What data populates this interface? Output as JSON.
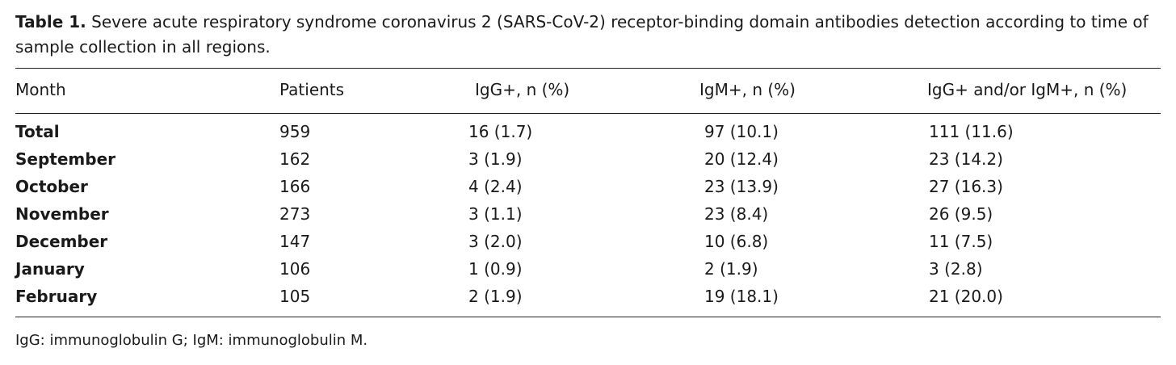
{
  "caption": {
    "label": "Table 1.",
    "text": "Severe acute respiratory syndrome coronavirus 2 (SARS-CoV-2) receptor-binding domain antibodies detection according to time of sample collection in all regions."
  },
  "table": {
    "headers": [
      "Month",
      "Patients",
      "IgG+, n (%)",
      "IgM+, n (%)",
      "IgG+ and/or IgM+, n (%)"
    ],
    "rows": [
      {
        "month": "Total",
        "patients": "959",
        "igg": "16 (1.7)",
        "igm": "97 (10.1)",
        "both": "111 (11.6)"
      },
      {
        "month": "September",
        "patients": "162",
        "igg": "3 (1.9)",
        "igm": "20 (12.4)",
        "both": "23 (14.2)"
      },
      {
        "month": "October",
        "patients": "166",
        "igg": "4 (2.4)",
        "igm": "23 (13.9)",
        "both": "27 (16.3)"
      },
      {
        "month": "November",
        "patients": "273",
        "igg": "3 (1.1)",
        "igm": "23 (8.4)",
        "both": "26 (9.5)"
      },
      {
        "month": "December",
        "patients": "147",
        "igg": "3 (2.0)",
        "igm": "10 (6.8)",
        "both": "11 (7.5)"
      },
      {
        "month": "January",
        "patients": "106",
        "igg": "1 (0.9)",
        "igm": "2 (1.9)",
        "both": "3 (2.8)"
      },
      {
        "month": "February",
        "patients": "105",
        "igg": "2 (1.9)",
        "igm": "19 (18.1)",
        "both": "21 (20.0)"
      }
    ]
  },
  "footnote": "IgG: immunoglobulin G; IgM: immunoglobulin M."
}
